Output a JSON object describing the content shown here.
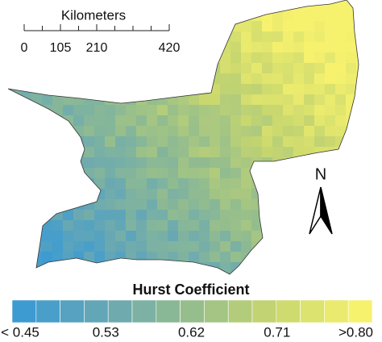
{
  "scale_bar": {
    "title": "Kilometers",
    "ticks": [
      0,
      105,
      210,
      420
    ]
  },
  "north_label": "N",
  "legend": {
    "title": "Hurst Coefficient",
    "labels": [
      "< 0.45",
      "0.53",
      "0.62",
      "0.71",
      ">0.80"
    ]
  }
}
